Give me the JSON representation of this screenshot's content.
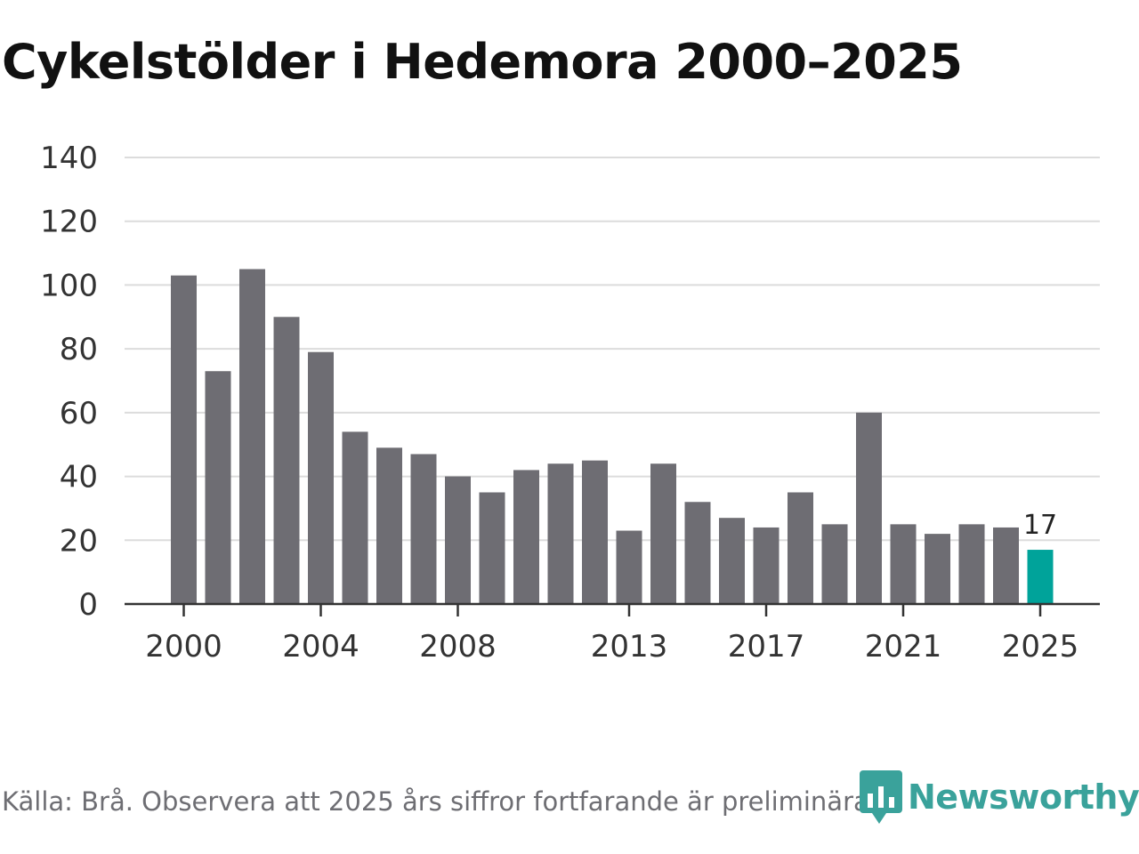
{
  "colors": {
    "bar": "#6e6d73",
    "highlight": "#00a39a",
    "grid": "#dcdcdc",
    "axis": "#333333",
    "brand": "#3aa29b"
  },
  "source_text": "Källa: Brå. Observera att 2025 års siffror fortfarande är preliminära.",
  "logo": {
    "text": "Newsworthy",
    "icon": "newsworthy-logo-icon"
  },
  "chart_data": {
    "type": "bar",
    "title": "Cykelstölder i Hedemora 2000–2025",
    "xlabel": "",
    "ylabel": "",
    "ylim": [
      0,
      140
    ],
    "yticks": [
      0,
      20,
      40,
      60,
      80,
      100,
      120,
      140
    ],
    "grid": true,
    "categories": [
      "2000",
      "2001",
      "2002",
      "2003",
      "2004",
      "2005",
      "2006",
      "2007",
      "2008",
      "2009",
      "2010",
      "2011",
      "2012",
      "2013",
      "2014",
      "2015",
      "2016",
      "2017",
      "2018",
      "2019",
      "2020",
      "2021",
      "2022",
      "2023",
      "2024",
      "2025"
    ],
    "values": [
      103,
      73,
      105,
      90,
      79,
      54,
      49,
      47,
      40,
      35,
      42,
      44,
      45,
      23,
      44,
      32,
      27,
      24,
      35,
      25,
      60,
      25,
      22,
      25,
      24,
      17
    ],
    "xtick_labels": [
      "2000",
      "2004",
      "2008",
      "2013",
      "2017",
      "2021",
      "2025"
    ],
    "highlight": {
      "category": "2025",
      "label": "17"
    }
  }
}
